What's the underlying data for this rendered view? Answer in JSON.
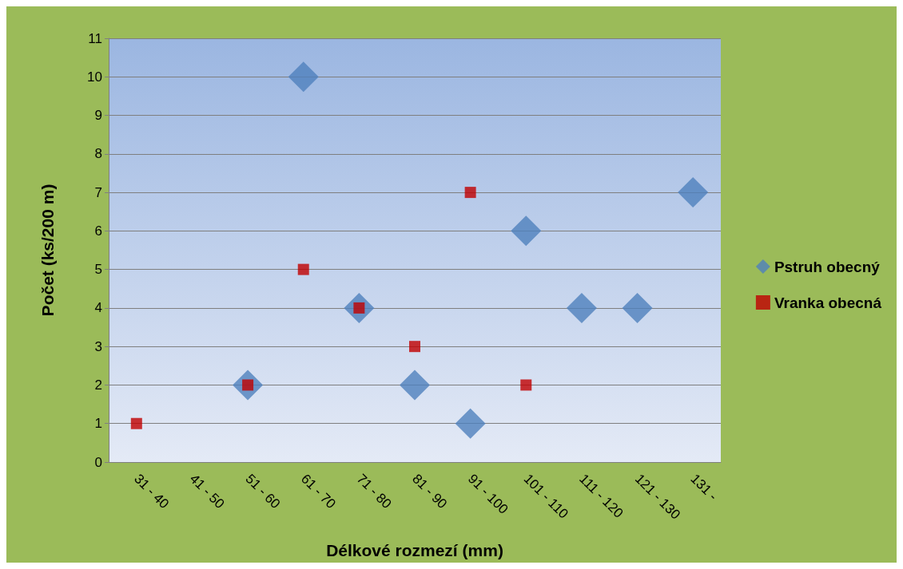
{
  "chart_data": {
    "type": "scatter",
    "xlabel": "Délkové rozmezí (mm)",
    "ylabel": "Počet (ks/200 m)",
    "categories": [
      "31 - 40",
      "41 - 50",
      "51 - 60",
      "61 - 70",
      "71 - 80",
      "81 - 90",
      "91 - 100",
      "101 - 110",
      "111 - 120",
      "121 - 130",
      "131 -"
    ],
    "series": [
      {
        "name": "Pstruh obecný",
        "color": "#4f81bd",
        "marker": "diamond",
        "values": [
          null,
          null,
          2,
          10,
          4,
          2,
          1,
          6,
          4,
          4,
          7
        ]
      },
      {
        "name": "Vranka obecná",
        "color": "#c00000",
        "marker": "square",
        "values": [
          1,
          null,
          2,
          5,
          4,
          3,
          7,
          2,
          null,
          null,
          null
        ]
      }
    ],
    "ylim": [
      0,
      11
    ],
    "yticks": [
      0,
      1,
      2,
      3,
      4,
      5,
      6,
      7,
      8,
      9,
      10,
      11
    ],
    "grid": "y",
    "legend": "right"
  }
}
